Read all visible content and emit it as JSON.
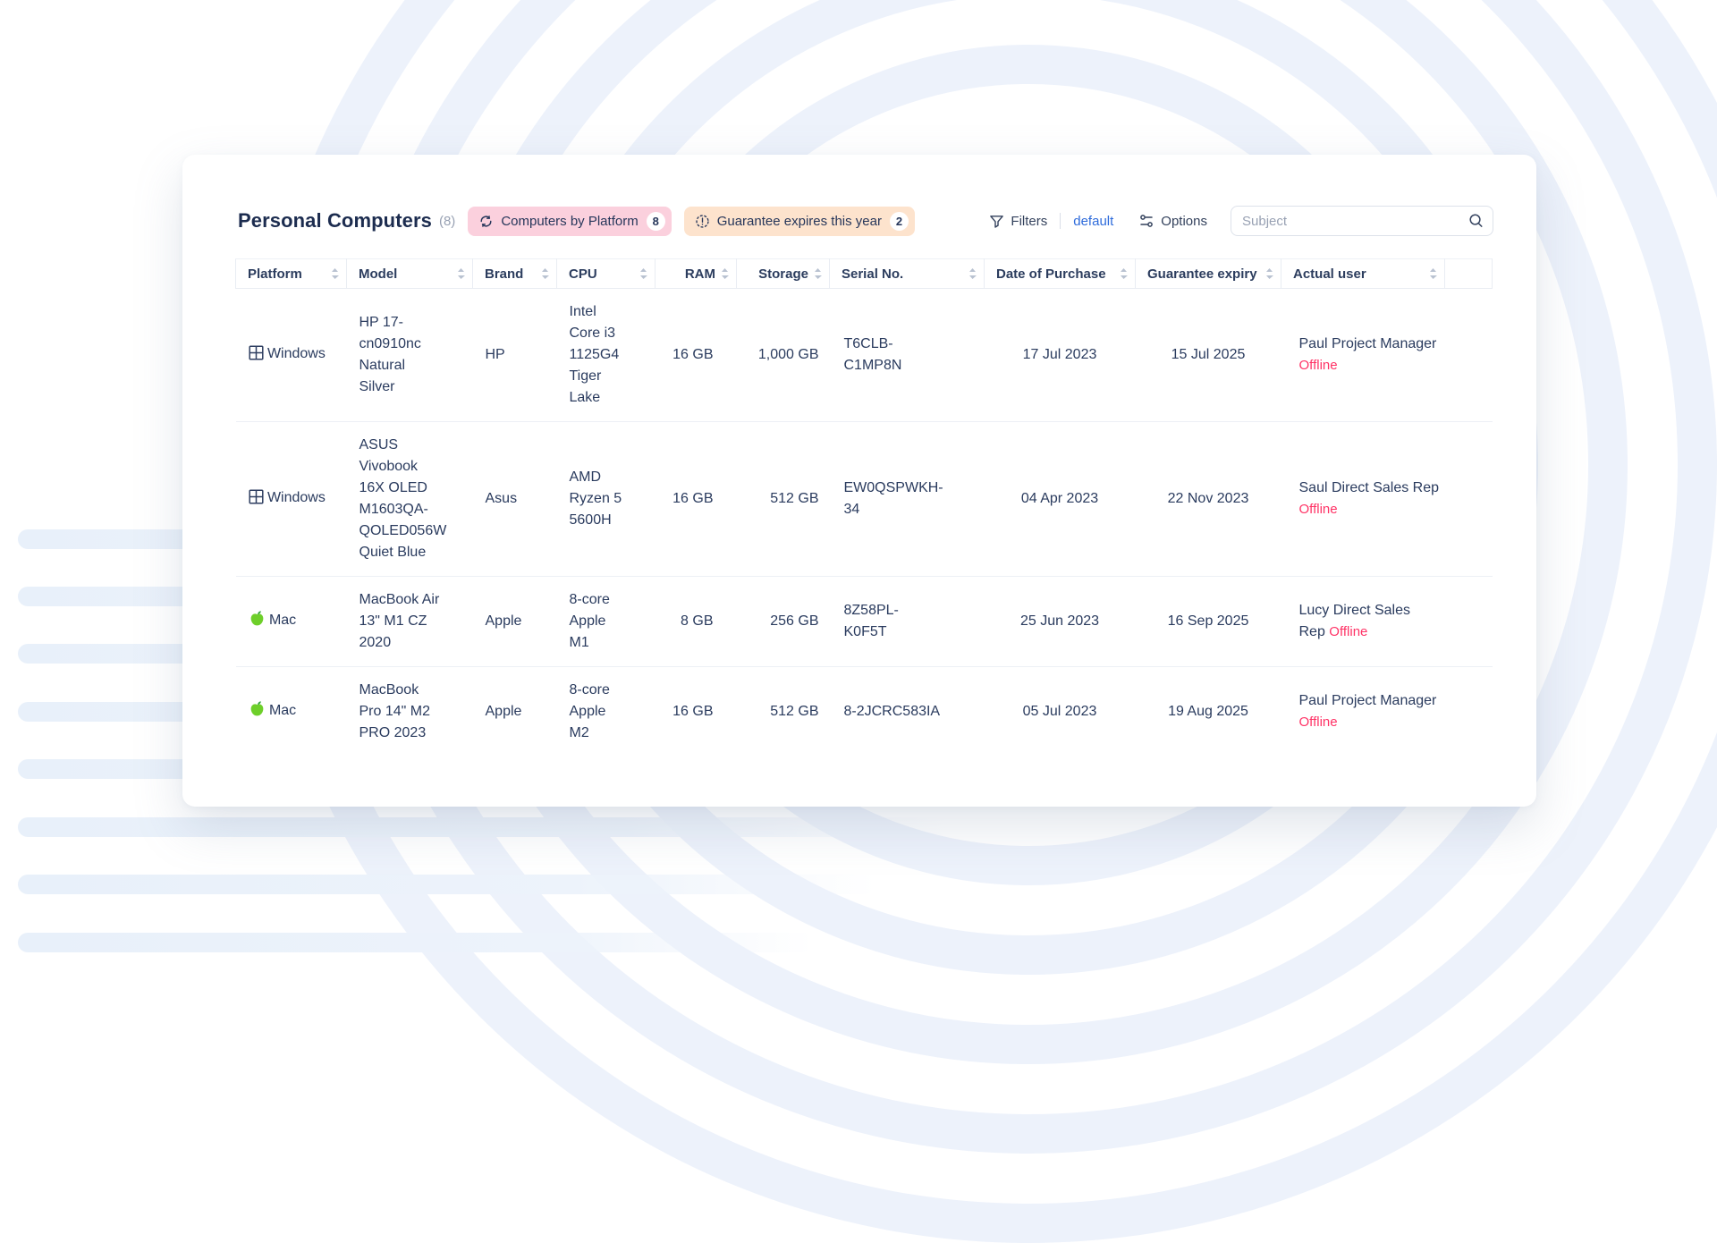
{
  "header": {
    "title": "Personal Computers",
    "count": "(8)",
    "chips": [
      {
        "label": "Computers by Platform",
        "count": "8",
        "icon": "refresh-icon",
        "color": "#fbd0dd"
      },
      {
        "label": "Guarantee expires this year",
        "count": "2",
        "icon": "alert-icon",
        "color": "#fde3cd"
      }
    ],
    "toolbar": {
      "filters_label": "Filters",
      "filters_view": "default",
      "options_label": "Options",
      "search_placeholder": "Subject"
    }
  },
  "table": {
    "columns": [
      {
        "key": "platform",
        "label": "Platform"
      },
      {
        "key": "model",
        "label": "Model"
      },
      {
        "key": "brand",
        "label": "Brand"
      },
      {
        "key": "cpu",
        "label": "CPU"
      },
      {
        "key": "ram",
        "label": "RAM"
      },
      {
        "key": "storage",
        "label": "Storage"
      },
      {
        "key": "serial",
        "label": "Serial No."
      },
      {
        "key": "purchase",
        "label": "Date of Purchase"
      },
      {
        "key": "expiry",
        "label": "Guarantee expiry"
      },
      {
        "key": "user",
        "label": "Actual user"
      }
    ],
    "rows": [
      {
        "platform": "Windows",
        "platform_icon": "windows-icon",
        "model": "HP 17-\ncn0910nc\nNatural\nSilver",
        "brand": "HP",
        "cpu": "Intel\nCore i3\n1125G4\nTiger\nLake",
        "ram": "16 GB",
        "storage": "1,000 GB",
        "serial": "T6CLB-\nC1MP8N",
        "purchase": "17 Jul 2023",
        "expiry": "15 Jul 2025",
        "user": "Paul Project Manager",
        "status": "Offline"
      },
      {
        "platform": "Windows",
        "platform_icon": "windows-icon",
        "model": "ASUS\nVivobook\n16X OLED\nM1603QA-\nQOLED056W\nQuiet Blue",
        "brand": "Asus",
        "cpu": "AMD\nRyzen 5\n5600H",
        "ram": "16 GB",
        "storage": "512 GB",
        "serial": "EW0QSPWKH-\n34",
        "purchase": "04 Apr 2023",
        "expiry": "22 Nov 2023",
        "user": "Saul Direct Sales Rep",
        "status": "Offline"
      },
      {
        "platform": "Mac",
        "platform_icon": "apple-icon",
        "model": "MacBook Air\n13\" M1 CZ\n2020",
        "brand": "Apple",
        "cpu": "8-core\nApple\nM1",
        "ram": "8 GB",
        "storage": "256 GB",
        "serial": "8Z58PL-\nK0F5T",
        "purchase": "25 Jun 2023",
        "expiry": "16 Sep 2025",
        "user": "Lucy Direct Sales Rep",
        "status": "Offline"
      },
      {
        "platform": "Mac",
        "platform_icon": "apple-icon",
        "model": "MacBook\nPro 14\" M2\nPRO 2023",
        "brand": "Apple",
        "cpu": "8-core\nApple\nM2",
        "ram": "16 GB",
        "storage": "512 GB",
        "serial": "8-2JCRC583IA",
        "purchase": "05 Jul 2023",
        "expiry": "19 Aug 2025",
        "user": "Paul Project Manager",
        "status": "Offline"
      }
    ]
  },
  "colors": {
    "accent_blue": "#2e6bdb",
    "chip_pink": "#fbd0dd",
    "chip_orange": "#fde3cd",
    "status_offline": "#ff3366",
    "apple_green": "#6ecf2a",
    "text_navy": "#2a3b5e"
  }
}
